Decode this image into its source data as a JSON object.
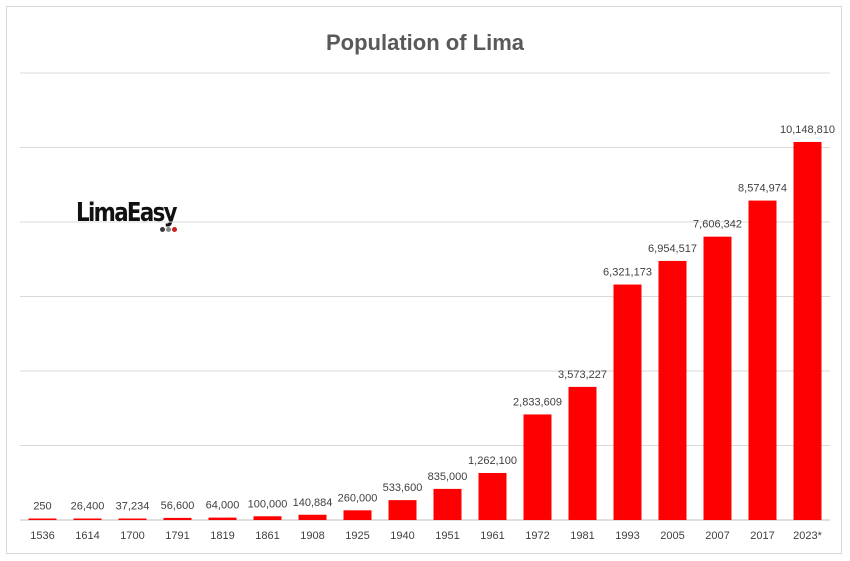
{
  "chart_data": {
    "type": "bar",
    "title": "Population of Lima",
    "xlabel": "",
    "ylabel": "",
    "ylim": [
      0,
      12000000
    ],
    "grid": true,
    "legend": "none",
    "bar_color": "#ff0000",
    "categories": [
      "1536",
      "1614",
      "1700",
      "1791",
      "1819",
      "1861",
      "1908",
      "1925",
      "1940",
      "1951",
      "1961",
      "1972",
      "1981",
      "1993",
      "2005",
      "2007",
      "2017",
      "2023*"
    ],
    "values": [
      250,
      26400,
      37234,
      56600,
      64000,
      100000,
      140884,
      260000,
      533600,
      835000,
      1262100,
      2833609,
      3573227,
      6321173,
      6954517,
      7606342,
      8574974,
      10148810
    ],
    "data_labels": [
      "250",
      "26,400",
      "37,234",
      "56,600",
      "64,000",
      "100,000",
      "140,884",
      "260,000",
      "533,600",
      "835,000",
      "1,262,100",
      "2,833,609",
      "3,573,227",
      "6,321,173",
      "6,954,517",
      "7,606,342",
      "8,574,974",
      "10,148,810"
    ]
  },
  "logo": {
    "text": "LimaEasy",
    "dot_colors": [
      "#3a3a3a",
      "#8a8a8a",
      "#cc2222"
    ]
  }
}
